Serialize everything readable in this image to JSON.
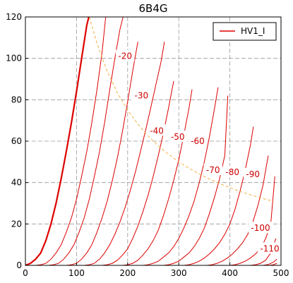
{
  "chart_data": {
    "type": "line",
    "title": "6B4G",
    "xlabel": "",
    "ylabel": "",
    "xlim": [
      0,
      500
    ],
    "ylim": [
      0,
      120
    ],
    "xticks": [
      0,
      100,
      200,
      300,
      400,
      500
    ],
    "yticks": [
      0,
      20,
      40,
      60,
      80,
      100,
      120
    ],
    "grid": true,
    "legend": {
      "placement": "top-right",
      "entries": [
        "HV1_I"
      ]
    },
    "colors": {
      "curves": "#dd0000",
      "dissipation": "#f0b040",
      "grid": "#999999"
    },
    "curve_labels": [
      "-20",
      "-30",
      "-40",
      "-50",
      "-60",
      "-70",
      "-80",
      "-90",
      "-100",
      "-110"
    ],
    "series": [
      {
        "name": "HV1_I",
        "grid_bias": "0",
        "x": [
          0,
          10,
          20,
          30,
          40,
          50,
          60,
          70,
          80,
          90,
          100,
          110,
          120,
          124
        ],
        "y": [
          0,
          1,
          3,
          6,
          12,
          20,
          30,
          42,
          55,
          69,
          84,
          100,
          116,
          120
        ]
      },
      {
        "grid_bias": "-10",
        "x": [
          0,
          20,
          30,
          40,
          50,
          60,
          70,
          80,
          90,
          100,
          110,
          120,
          130,
          140,
          150,
          157
        ],
        "y": [
          0,
          0,
          0.3,
          1,
          3,
          6,
          10,
          16,
          23,
          32,
          43,
          55,
          69,
          85,
          103,
          120
        ]
      },
      {
        "grid_bias": "-20",
        "x": [
          0,
          45,
          55,
          65,
          75,
          85,
          95,
          105,
          115,
          125,
          135,
          145,
          155,
          165,
          175,
          185,
          191
        ],
        "y": [
          0,
          0,
          0.3,
          1,
          3,
          6,
          10,
          16,
          23,
          32,
          43,
          55,
          69,
          85,
          100,
          114,
          120
        ]
      },
      {
        "grid_bias": "-30",
        "x": [
          0,
          80,
          90,
          100,
          110,
          120,
          130,
          140,
          150,
          160,
          170,
          180,
          190,
          200,
          210,
          220
        ],
        "y": [
          0,
          0,
          0.3,
          1,
          3,
          6,
          10,
          16,
          23,
          31,
          41,
          52,
          65,
          79,
          94,
          108
        ]
      },
      {
        "grid_bias": "-40",
        "x": [
          0,
          115,
          125,
          135,
          145,
          155,
          165,
          175,
          185,
          195,
          205,
          215,
          225,
          235,
          245,
          255,
          265,
          272
        ],
        "y": [
          0,
          0,
          0.3,
          1,
          3,
          6,
          10,
          15,
          21,
          28,
          36,
          45,
          55,
          65,
          76,
          87,
          98,
          108
        ]
      },
      {
        "grid_bias": "-50",
        "x": [
          0,
          150,
          160,
          170,
          180,
          190,
          200,
          210,
          220,
          230,
          240,
          250,
          260,
          270,
          280,
          290
        ],
        "y": [
          0,
          0,
          0.3,
          1,
          2.5,
          5,
          8,
          13,
          19,
          26,
          34,
          43,
          53,
          64,
          76,
          89
        ]
      },
      {
        "grid_bias": "-60",
        "x": [
          0,
          190,
          200,
          210,
          220,
          230,
          240,
          250,
          260,
          270,
          280,
          290,
          300,
          310,
          320,
          326
        ],
        "y": [
          0,
          0,
          0.3,
          1,
          2.5,
          5,
          8,
          12,
          17,
          24,
          32,
          41,
          51,
          63,
          76,
          85
        ]
      },
      {
        "grid_bias": "-70",
        "x": [
          0,
          230,
          240,
          250,
          260,
          270,
          280,
          290,
          300,
          310,
          320,
          330,
          340,
          350,
          360,
          370,
          377
        ],
        "y": [
          0,
          0,
          0.3,
          1,
          2,
          4,
          6,
          9,
          13,
          18,
          24,
          31,
          40,
          50,
          62,
          76,
          86
        ]
      },
      {
        "grid_bias": "-80",
        "x": [
          0,
          270,
          280,
          290,
          300,
          310,
          320,
          330,
          340,
          350,
          360,
          370,
          380,
          390,
          396
        ],
        "y": [
          0,
          0,
          0.3,
          1,
          2,
          4,
          6,
          9,
          13,
          18,
          25,
          33,
          42,
          53,
          82
        ]
      },
      {
        "grid_bias": "-90",
        "x": [
          0,
          310,
          320,
          330,
          340,
          350,
          360,
          370,
          380,
          390,
          400,
          410,
          420,
          430,
          440,
          446
        ],
        "y": [
          0,
          0,
          0.3,
          1,
          2,
          3.5,
          5.5,
          8,
          11,
          15,
          20,
          27,
          36,
          46,
          58,
          67
        ]
      },
      {
        "grid_bias": "-100",
        "x": [
          0,
          355,
          365,
          375,
          385,
          395,
          405,
          415,
          425,
          435,
          445,
          455,
          465,
          475
        ],
        "y": [
          0,
          0,
          0.3,
          1,
          2,
          3.5,
          5.5,
          8,
          11,
          15,
          21,
          29,
          39,
          53
        ]
      },
      {
        "grid_bias": "-110",
        "x": [
          0,
          400,
          410,
          420,
          430,
          440,
          450,
          460,
          470,
          480,
          488
        ],
        "y": [
          0,
          0,
          0.3,
          1,
          2,
          3.5,
          5.5,
          8,
          13,
          20,
          43
        ]
      },
      {
        "grid_bias": "-120",
        "x": [
          0,
          440,
          450,
          460,
          470,
          480,
          490
        ],
        "y": [
          0,
          0,
          0.3,
          1,
          2.5,
          6,
          13
        ]
      },
      {
        "grid_bias": "-130",
        "x": [
          0,
          465,
          475,
          485,
          492
        ],
        "y": [
          0,
          0,
          0.4,
          1.5,
          3
        ]
      },
      {
        "grid_bias": "-140",
        "x": [
          0,
          478,
          485,
          492
        ],
        "y": [
          0,
          0,
          0.3,
          1
        ]
      }
    ],
    "dissipation_curve": {
      "x": [
        125,
        140,
        160,
        180,
        200,
        220,
        240,
        260,
        280,
        300,
        320,
        340,
        360,
        380,
        400,
        420,
        440,
        460,
        480,
        485
      ],
      "y": [
        120,
        107.1,
        93.8,
        83.3,
        75,
        68.2,
        62.5,
        57.7,
        53.6,
        50,
        46.9,
        44.1,
        41.7,
        39.5,
        37.5,
        35.7,
        34.1,
        32.6,
        31.3,
        30.9
      ]
    }
  }
}
